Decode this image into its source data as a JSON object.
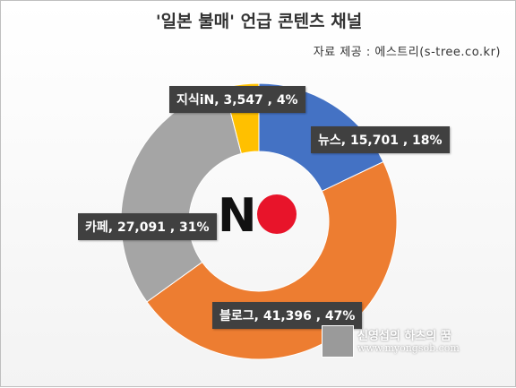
{
  "chart_data": {
    "type": "pie",
    "variant": "donut",
    "title": "'일본 불매' 언급 콘텐츠 채널",
    "source": "자료 제공 : 에스트리(s-tree.co.kr)",
    "legend": "none",
    "slices": [
      {
        "name": "뉴스",
        "value": 15701,
        "percent": 18,
        "label": "뉴스, 15,701 , 18%",
        "color": "#4472c4"
      },
      {
        "name": "블로그",
        "value": 41396,
        "percent": 47,
        "label": "블로그, 41,396 , 47%",
        "color": "#ed7d31"
      },
      {
        "name": "카페",
        "value": 27091,
        "percent": 31,
        "label": "카페, 27,091 , 31%",
        "color": "#a5a5a5"
      },
      {
        "name": "지식iN",
        "value": 3547,
        "percent": 4,
        "label": "지식iN, 3,547 , 4%",
        "color": "#ffc000"
      }
    ]
  },
  "center_logo": {
    "text": "N",
    "circle_color": "#e8142a"
  },
  "watermark": {
    "name": "신영섭의 하츠의 꿈",
    "url": "www.myongsob.com"
  }
}
